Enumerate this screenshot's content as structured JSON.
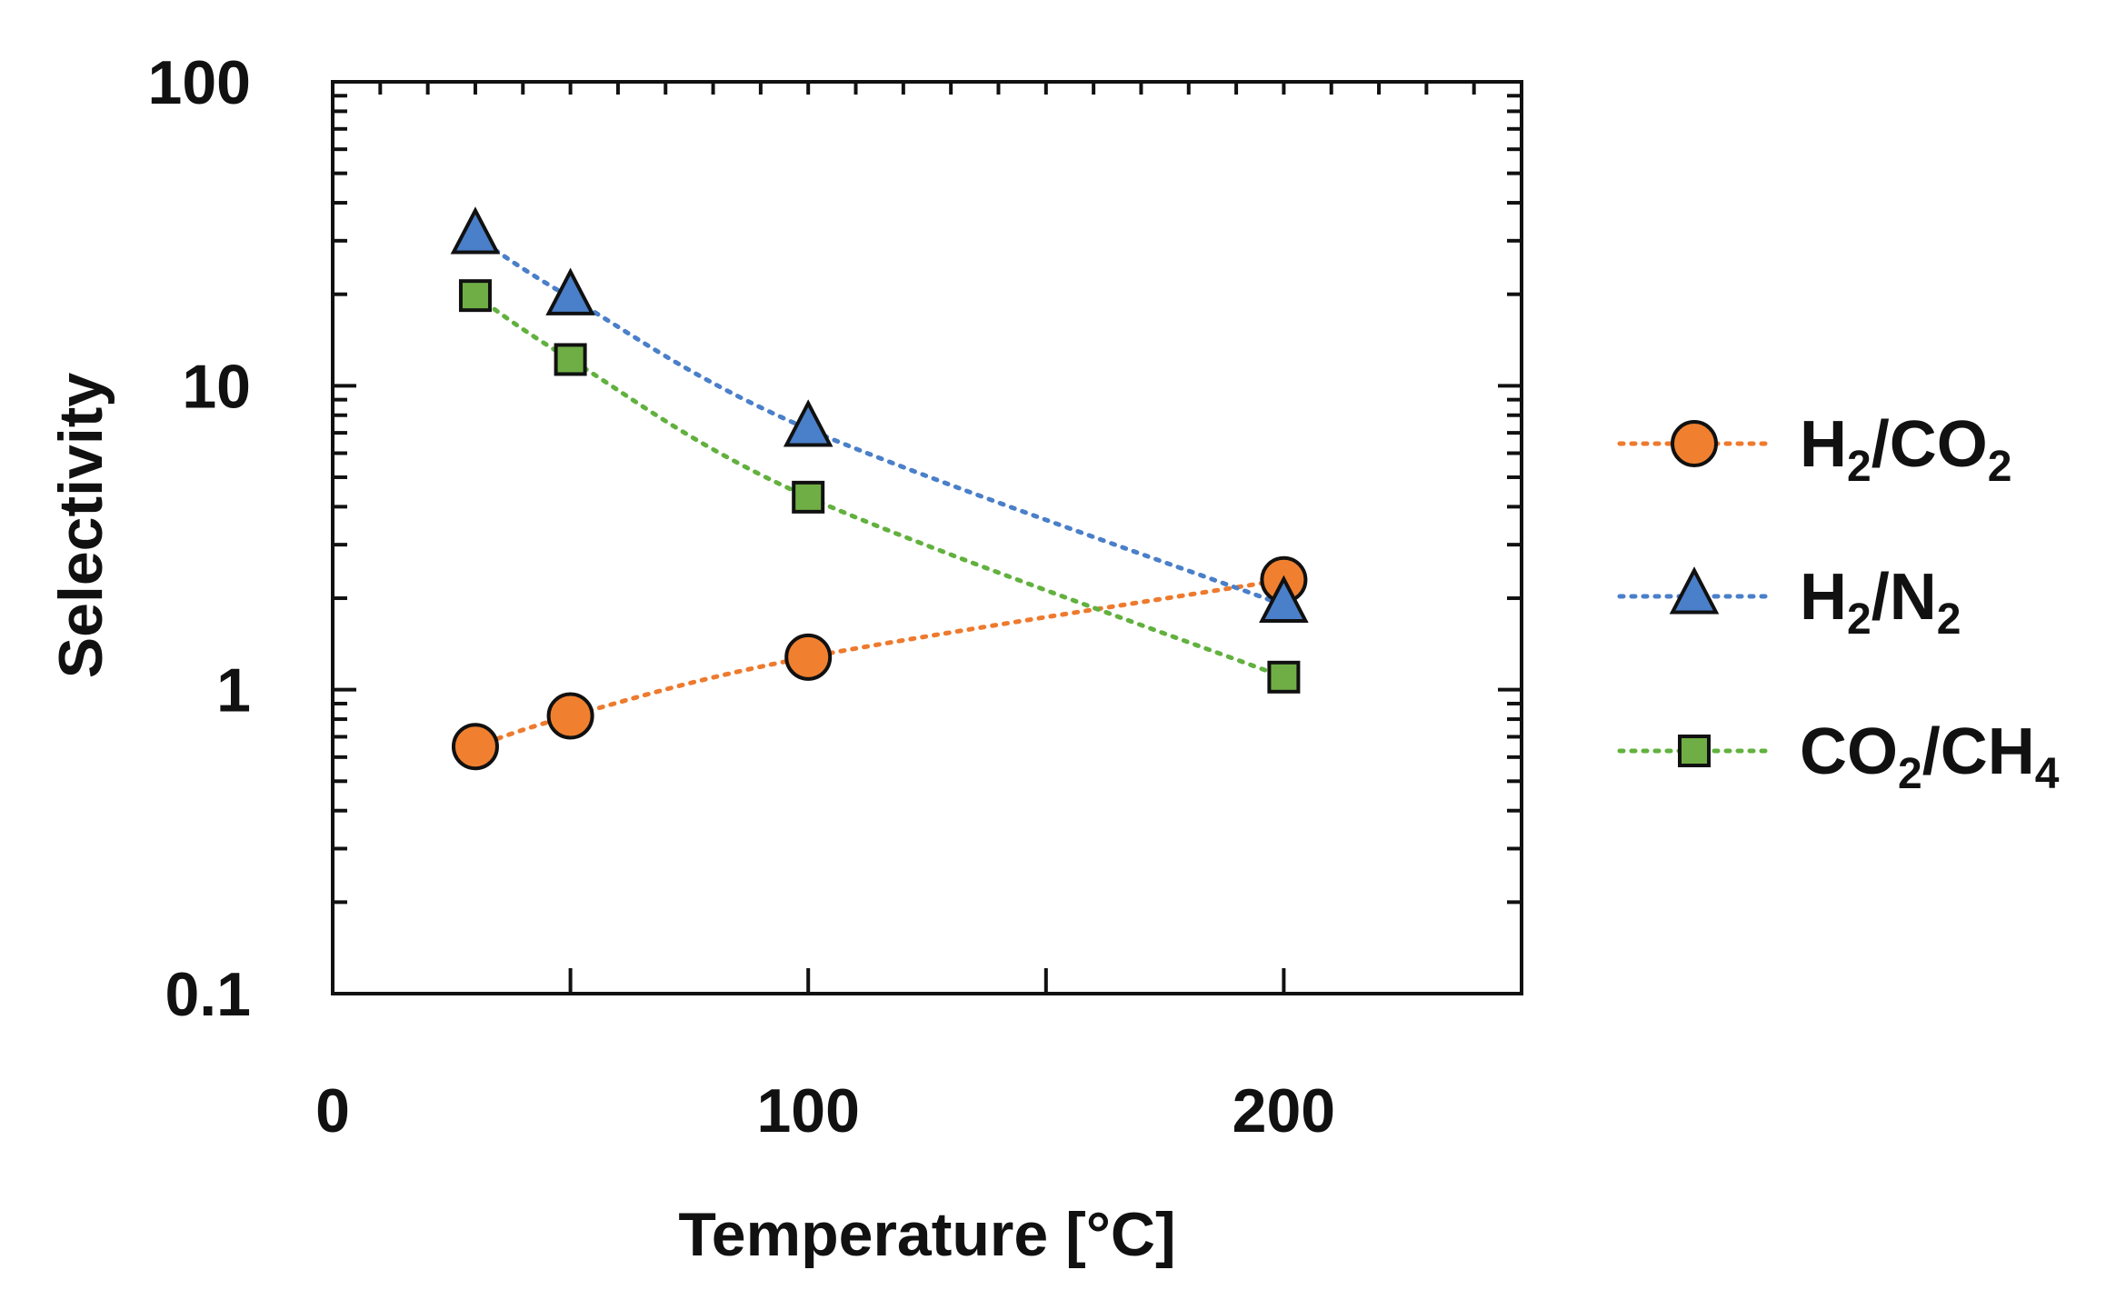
{
  "chart_data": {
    "type": "scatter",
    "xlabel": "Temperature [°C]",
    "ylabel": "Selectivity",
    "xlim": [
      0,
      250
    ],
    "ylim": [
      0.1,
      100
    ],
    "yscale": "log",
    "x_ticks": [
      {
        "value": 0,
        "label": "0"
      },
      {
        "value": 100,
        "label": "100"
      },
      {
        "value": 200,
        "label": "200"
      }
    ],
    "y_ticks": [
      {
        "value": 0.1,
        "label": "0.1"
      },
      {
        "value": 1,
        "label": "1"
      },
      {
        "value": 10,
        "label": "10"
      },
      {
        "value": 100,
        "label": "100"
      }
    ],
    "grid": false,
    "legend_position": "right",
    "series": [
      {
        "name": "H2/CO2",
        "label_parts": [
          {
            "t": "H",
            "sub": "2"
          },
          {
            "t": "/CO",
            "sub": "2"
          }
        ],
        "marker": "circle",
        "color": "#f0802f",
        "line_color": "#ee7a2e",
        "x": [
          30,
          50,
          100,
          200
        ],
        "y": [
          0.65,
          0.82,
          1.28,
          2.3
        ]
      },
      {
        "name": "H2/N2",
        "label_parts": [
          {
            "t": "H",
            "sub": "2"
          },
          {
            "t": "/N",
            "sub": "2"
          }
        ],
        "marker": "triangle",
        "color": "#4a7fc9",
        "line_color": "#4a7fc9",
        "x": [
          30,
          50,
          100,
          200
        ],
        "y": [
          31,
          19.5,
          7.2,
          1.9
        ]
      },
      {
        "name": "CO2/CH4",
        "label_parts": [
          {
            "t": "CO",
            "sub": "2"
          },
          {
            "t": "/CH",
            "sub": "4"
          }
        ],
        "marker": "square",
        "color": "#6fae45",
        "line_color": "#62b13f",
        "x": [
          30,
          50,
          100,
          200
        ],
        "y": [
          19.8,
          12.2,
          4.3,
          1.1
        ]
      }
    ]
  }
}
